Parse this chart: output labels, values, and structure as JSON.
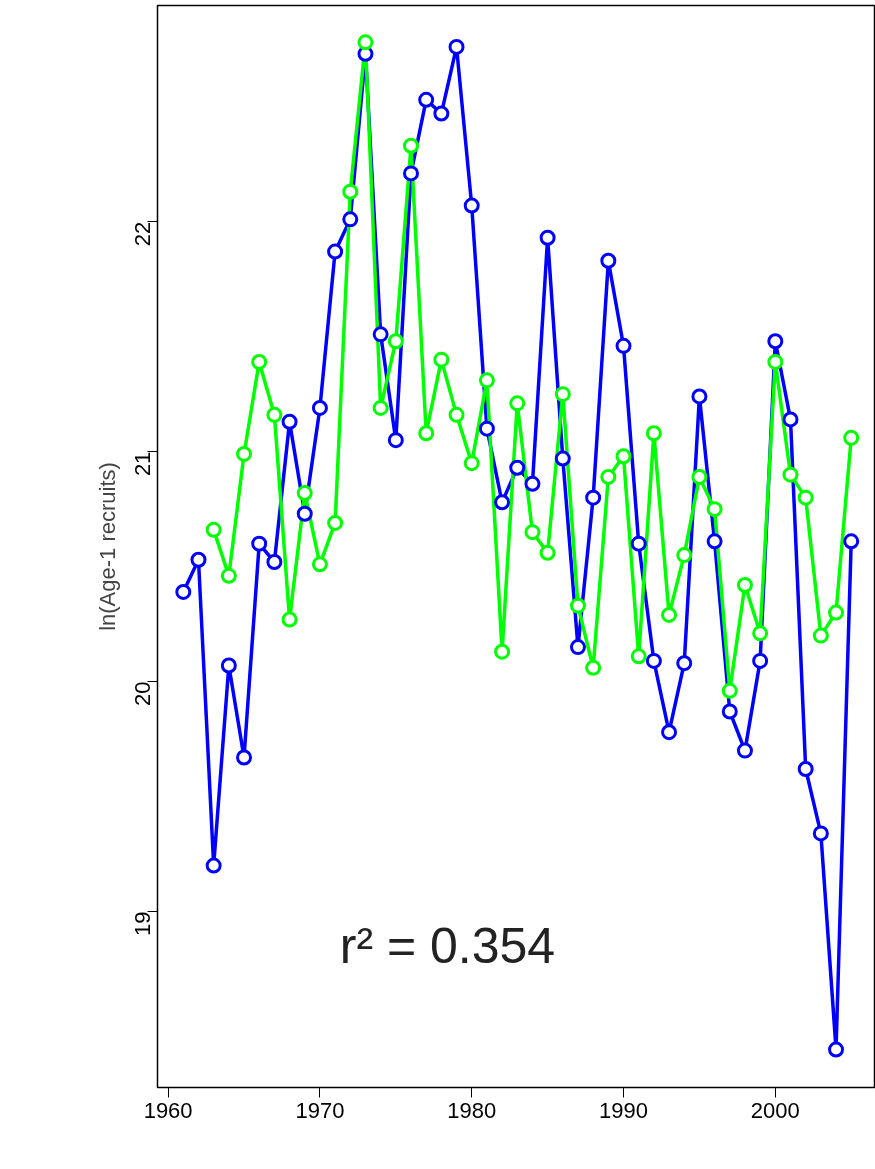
{
  "chart_data": {
    "type": "line",
    "ylabel": "ln(Age-1 recruits)",
    "marker": "circle",
    "grid": false,
    "xlim": [
      1959.3,
      2006.6
    ],
    "ylim": [
      18.235,
      22.94
    ],
    "xticks": [
      1960,
      1970,
      1980,
      1990,
      2000
    ],
    "yticks": [
      19,
      20,
      21,
      22
    ],
    "annotations": [
      "r² = 0.354"
    ],
    "series": [
      {
        "color": "#0000ff",
        "x": [
          1961,
          1962,
          1963,
          1964,
          1965,
          1966,
          1967,
          1968,
          1969,
          1970,
          1971,
          1972,
          1973,
          1974,
          1975,
          1976,
          1977,
          1978,
          1979,
          1980,
          1981,
          1982,
          1983,
          1984,
          1985,
          1986,
          1987,
          1988,
          1989,
          1990,
          1991,
          1992,
          1993,
          1994,
          1995,
          1996,
          1997,
          1998,
          1999,
          2000,
          2001,
          2002,
          2003,
          2004,
          2005
        ],
        "values": [
          20.39,
          20.53,
          19.2,
          20.07,
          19.67,
          20.6,
          20.52,
          21.13,
          20.73,
          21.19,
          21.87,
          22.01,
          22.73,
          21.51,
          21.05,
          22.21,
          22.53,
          22.47,
          22.76,
          22.07,
          21.1,
          20.78,
          20.93,
          20.86,
          21.93,
          20.97,
          20.15,
          20.8,
          21.83,
          21.46,
          20.6,
          20.09,
          19.78,
          20.08,
          21.24,
          20.61,
          19.87,
          19.7,
          20.09,
          21.48,
          21.14,
          19.62,
          19.34,
          18.4,
          20.61
        ]
      },
      {
        "color": "#00ff00",
        "x": [
          1963,
          1964,
          1965,
          1966,
          1967,
          1968,
          1969,
          1970,
          1971,
          1972,
          1973,
          1974,
          1975,
          1976,
          1977,
          1978,
          1979,
          1980,
          1981,
          1982,
          1983,
          1984,
          1985,
          1986,
          1987,
          1988,
          1989,
          1990,
          1991,
          1992,
          1993,
          1994,
          1995,
          1996,
          1997,
          1998,
          1999,
          2000,
          2001,
          2002,
          2003,
          2004,
          2005
        ],
        "values": [
          20.66,
          20.46,
          20.99,
          21.39,
          21.16,
          20.27,
          20.82,
          20.51,
          20.69,
          22.13,
          22.78,
          21.19,
          21.48,
          22.33,
          21.08,
          21.4,
          21.16,
          20.95,
          21.31,
          20.13,
          21.21,
          20.65,
          20.56,
          21.25,
          20.33,
          20.06,
          20.89,
          20.98,
          20.11,
          21.08,
          20.29,
          20.55,
          20.89,
          20.75,
          19.96,
          20.42,
          20.21,
          21.39,
          20.9,
          20.8,
          20.2,
          20.3,
          21.06
        ]
      }
    ]
  }
}
